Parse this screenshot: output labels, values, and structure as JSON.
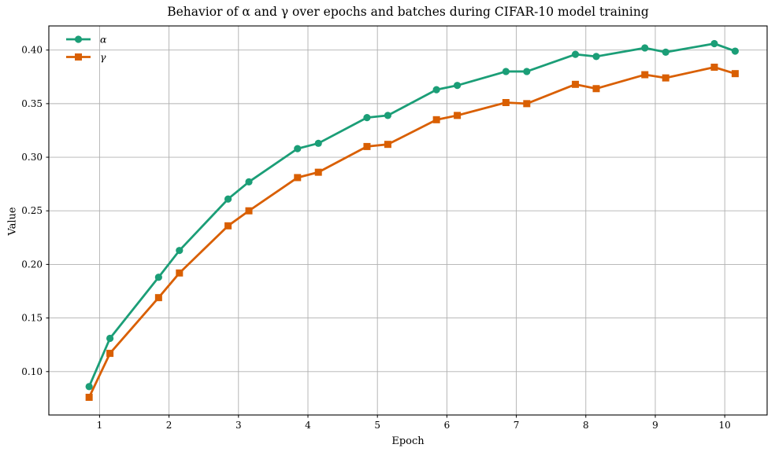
{
  "title": "Behavior of α and γ over epochs and batches during CIFAR-10 model training",
  "chart_data": {
    "type": "line",
    "title": "Behavior of α and γ over epochs and batches during CIFAR-10 model training",
    "xlabel": "Epoch",
    "ylabel": "Value",
    "x": [
      0.85,
      1.15,
      1.85,
      2.15,
      2.85,
      3.15,
      3.85,
      4.15,
      4.85,
      5.15,
      5.85,
      6.15,
      6.85,
      7.15,
      7.85,
      8.15,
      8.85,
      9.15,
      9.85,
      10.15
    ],
    "series": [
      {
        "name": "α",
        "color": "#1b9e77",
        "marker": "circle",
        "values": [
          0.086,
          0.131,
          0.188,
          0.213,
          0.261,
          0.277,
          0.308,
          0.313,
          0.337,
          0.339,
          0.363,
          0.367,
          0.38,
          0.38,
          0.396,
          0.394,
          0.402,
          0.398,
          0.406,
          0.399
        ]
      },
      {
        "name": "γ",
        "color": "#d95f02",
        "marker": "square",
        "values": [
          0.076,
          0.117,
          0.169,
          0.192,
          0.236,
          0.25,
          0.281,
          0.286,
          0.31,
          0.312,
          0.335,
          0.339,
          0.351,
          0.35,
          0.368,
          0.364,
          0.377,
          0.374,
          0.384,
          0.378
        ]
      }
    ],
    "xticks": [
      1,
      2,
      3,
      4,
      5,
      6,
      7,
      8,
      9,
      10
    ],
    "yticks": [
      0.1,
      0.15,
      0.2,
      0.25,
      0.3,
      0.35,
      0.4
    ],
    "xlim": [
      0.27,
      10.61
    ],
    "ylim": [
      0.0595,
      0.4225
    ],
    "grid": true,
    "grid_color": "#b0b0b0",
    "axis_color": "#000000",
    "background": "#ffffff",
    "legend_position": "upper-left"
  }
}
